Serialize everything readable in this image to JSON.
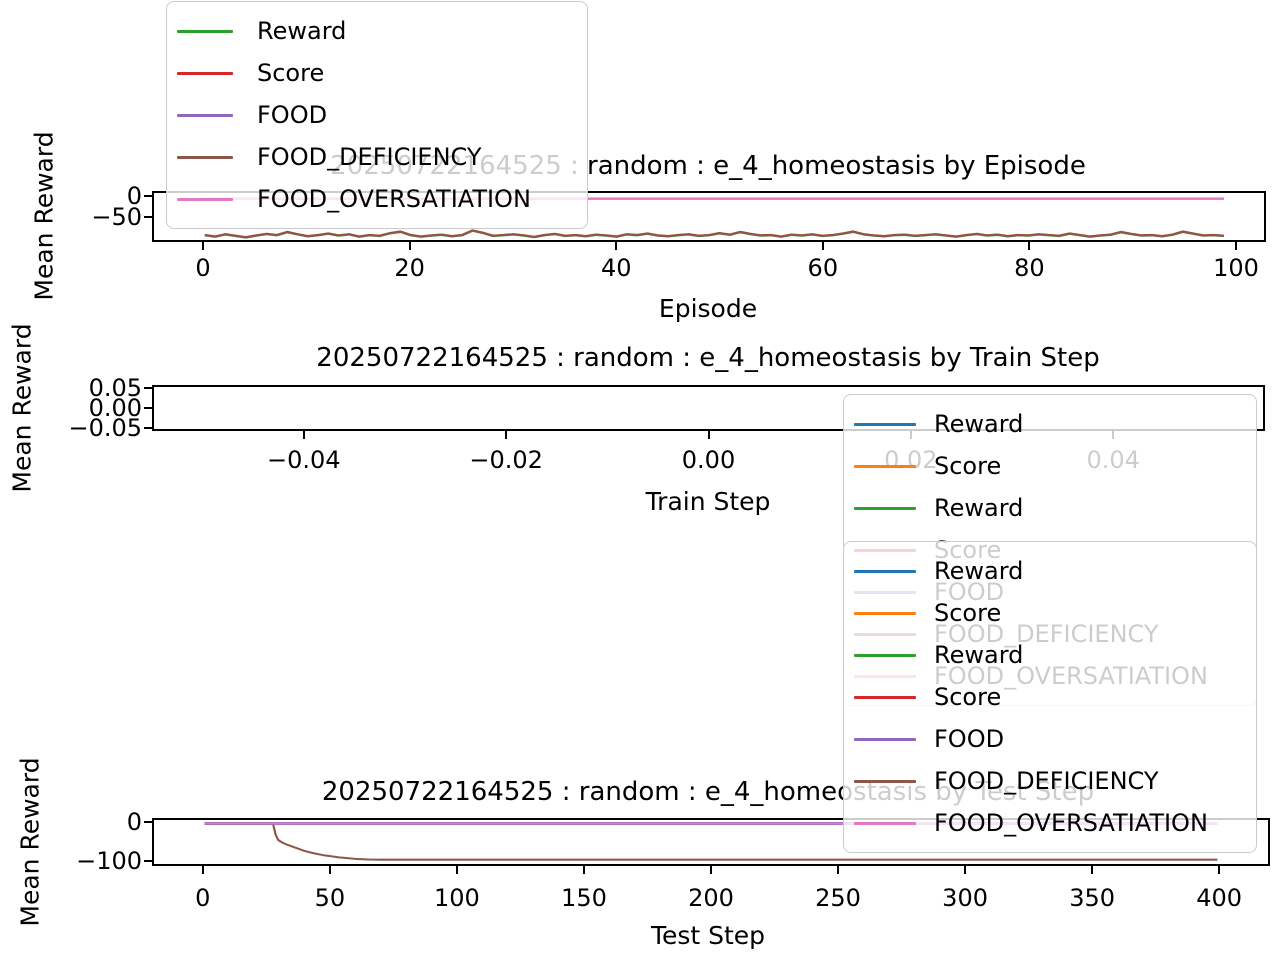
{
  "figure": {
    "background": "#ffffff"
  },
  "chart_data": [
    {
      "key": "episode",
      "type": "line",
      "title": "20250722164525 : random : e_4_homeostasis by Episode",
      "xlabel": "Episode",
      "ylabel": "Mean Reward",
      "xlim": [
        -4.94,
        102.9
      ],
      "ylim": [
        -112,
        12
      ],
      "grid": false,
      "xticks": {
        "values": [
          0,
          20,
          40,
          60,
          80,
          100
        ],
        "labels": [
          "0",
          "20",
          "40",
          "60",
          "80",
          "100"
        ]
      },
      "yticks": {
        "values": [
          0,
          -50
        ],
        "labels": [
          "0",
          "−50"
        ]
      },
      "series": [
        {
          "name": "Reward",
          "color": "#2ca02c",
          "width": 2,
          "y_from": "FOOD_DEFICIENCY",
          "y_offset": -1
        },
        {
          "name": "Score",
          "color": "#d62728",
          "width": 2,
          "y_from": "FOOD_DEFICIENCY",
          "y_offset": 0.8
        },
        {
          "name": "FOOD",
          "color": "#9467bd",
          "width": 2,
          "x_range": [
            0,
            99
          ],
          "y_const": -3
        },
        {
          "name": "FOOD_DEFICIENCY",
          "color": "#8c564b",
          "width": 2.2,
          "y": [
            -99,
            -103,
            -97,
            -101,
            -105,
            -100,
            -96,
            -99,
            -91,
            -97,
            -102,
            -99,
            -95,
            -100,
            -97,
            -103,
            -99,
            -101,
            -94,
            -90,
            -99,
            -103,
            -100,
            -98,
            -102,
            -99,
            -87,
            -93,
            -101,
            -99,
            -97,
            -100,
            -104,
            -99,
            -96,
            -101,
            -99,
            -102,
            -98,
            -100,
            -103,
            -97,
            -99,
            -95,
            -100,
            -102,
            -99,
            -97,
            -101,
            -99,
            -94,
            -98,
            -91,
            -96,
            -100,
            -99,
            -103,
            -98,
            -100,
            -97,
            -101,
            -99,
            -95,
            -90,
            -97,
            -100,
            -102,
            -99,
            -98,
            -101,
            -99,
            -97,
            -100,
            -103,
            -99,
            -96,
            -100,
            -98,
            -102,
            -99,
            -100,
            -97,
            -99,
            -101,
            -95,
            -99,
            -103,
            -100,
            -98,
            -91,
            -96,
            -100,
            -99,
            -102,
            -98,
            -90,
            -95,
            -100,
            -99,
            -101
          ]
        },
        {
          "name": "FOOD_OVERSATIATION",
          "color": "#e377c2",
          "width": 2.5,
          "x_range": [
            0,
            99
          ],
          "y_const": -3
        }
      ]
    },
    {
      "key": "train",
      "type": "line",
      "title": "20250722164525 : random : e_4_homeostasis by Train Step",
      "xlabel": "Train Step",
      "ylabel": "Mean Reward",
      "xlim": [
        -0.055,
        0.055
      ],
      "ylim": [
        -0.0575,
        0.0575
      ],
      "grid": false,
      "xticks": {
        "values": [
          -0.04,
          -0.02,
          0.0,
          0.02,
          0.04
        ],
        "labels": [
          "−0.04",
          "−0.02",
          "0.00",
          "0.02",
          "0.04"
        ]
      },
      "yticks": {
        "values": [
          0.05,
          0.0,
          -0.05
        ],
        "labels": [
          "0.05",
          "0.00",
          "−0.05"
        ]
      },
      "series": []
    },
    {
      "key": "test",
      "type": "line",
      "title": "20250722164525 : random : e_4_homeostasis by Test Step",
      "xlabel": "Test Step",
      "ylabel": "Mean Reward",
      "xlim": [
        -20,
        420
      ],
      "ylim": [
        -112.5,
        10
      ],
      "grid": false,
      "xticks": {
        "values": [
          0,
          50,
          100,
          150,
          200,
          250,
          300,
          350,
          400
        ],
        "labels": [
          "0",
          "50",
          "100",
          "150",
          "200",
          "250",
          "300",
          "350",
          "400"
        ]
      },
      "yticks": {
        "values": [
          0,
          -100
        ],
        "labels": [
          "0",
          "−100"
        ]
      },
      "series": [
        {
          "name": "Reward",
          "color": "#1f77b4",
          "width": 3.2,
          "x_range": [
            0,
            400
          ],
          "y_const": 0
        },
        {
          "name": "Score",
          "color": "#ff7f0e",
          "width": 2,
          "x_range": [
            0,
            400
          ],
          "y_const": 0
        },
        {
          "name": "Reward",
          "color": "#2ca02c",
          "width": 2,
          "x_range": [
            0,
            400
          ],
          "y_const": 0
        },
        {
          "name": "Score",
          "color": "#d62728",
          "width": 2,
          "x_range": [
            0,
            400
          ],
          "y_const": 0
        },
        {
          "name": "FOOD",
          "color": "#9467bd",
          "width": 3,
          "x_range": [
            0,
            400
          ],
          "y_const": 0
        },
        {
          "name": "FOOD_DEFICIENCY",
          "color": "#8c564b",
          "width": 2.2,
          "x": [
            0,
            27,
            28,
            29,
            30,
            31,
            33,
            35,
            37,
            39,
            41,
            44,
            47,
            50,
            53,
            56,
            60,
            65,
            70,
            80,
            100,
            150,
            200,
            250,
            300,
            350,
            400
          ],
          "y": [
            0,
            0,
            -30,
            -45,
            -50,
            -54,
            -60,
            -65,
            -70,
            -75,
            -79,
            -84,
            -88,
            -91,
            -94,
            -96,
            -98.5,
            -100,
            -100.5,
            -100.5,
            -100.5,
            -100.5,
            -100.5,
            -100.5,
            -100.5,
            -100.5,
            -100.5
          ]
        },
        {
          "name": "FOOD_OVERSATIATION",
          "color": "#e377c2",
          "width": 2,
          "x_range": [
            0,
            400
          ],
          "y_const": 0
        }
      ]
    }
  ],
  "legends": [
    {
      "key": "episode-legend",
      "location": "upper-left-of-episode-plot",
      "entries": [
        {
          "label": "Reward",
          "color": "#2ca02c"
        },
        {
          "label": "Score",
          "color": "#d62728"
        },
        {
          "label": "FOOD",
          "color": "#9467bd"
        },
        {
          "label": "FOOD_DEFICIENCY",
          "color": "#8c564b"
        },
        {
          "label": "FOOD_OVERSATIATION",
          "color": "#e377c2"
        }
      ]
    },
    {
      "key": "train-legend",
      "location": "right-below-train-plot",
      "entries": [
        {
          "label": "Reward",
          "color": "#1f77b4"
        },
        {
          "label": "Score",
          "color": "#ff7f0e"
        },
        {
          "label": "Reward",
          "color": "#2ca02c"
        },
        {
          "label": "Score",
          "color": "#d62728"
        },
        {
          "label": "FOOD",
          "color": "#9467bd"
        },
        {
          "label": "FOOD_DEFICIENCY",
          "color": "#8c564b"
        },
        {
          "label": "FOOD_OVERSATIATION",
          "color": "#e377c2"
        }
      ]
    },
    {
      "key": "test-legend",
      "location": "upper-right-of-test-plot",
      "entries": [
        {
          "label": "Reward",
          "color": "#1f77b4"
        },
        {
          "label": "Score",
          "color": "#ff7f0e"
        },
        {
          "label": "Reward",
          "color": "#2ca02c"
        },
        {
          "label": "Score",
          "color": "#d62728"
        },
        {
          "label": "FOOD",
          "color": "#9467bd"
        },
        {
          "label": "FOOD_DEFICIENCY",
          "color": "#8c564b"
        },
        {
          "label": "FOOD_OVERSATIATION",
          "color": "#e377c2"
        }
      ]
    }
  ]
}
